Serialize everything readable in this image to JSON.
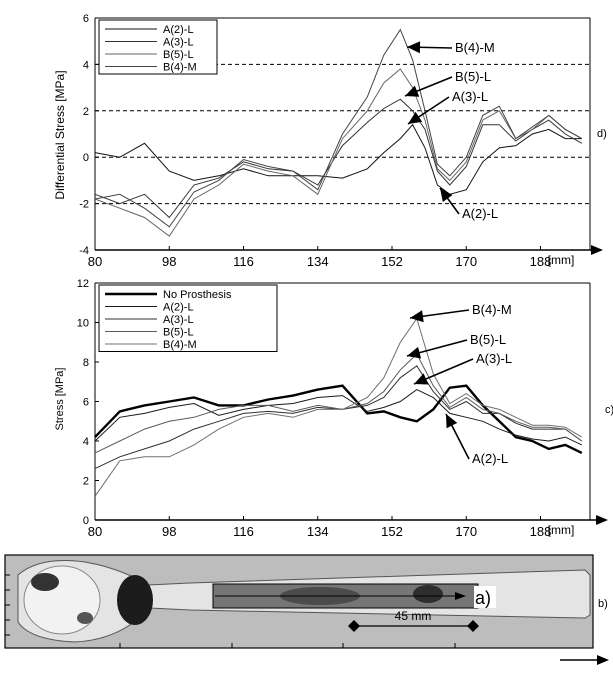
{
  "panel_labels": [
    "d)",
    "c)",
    "b)",
    "a)"
  ],
  "unit_label": "[mm]",
  "scale_bar_label": "45 mm",
  "chart_data": [
    {
      "type": "line",
      "panel": "d)",
      "ylabel": "Differential Stress [MPa]",
      "xlabel": "[mm]",
      "xlim": [
        80,
        200
      ],
      "ylim": [
        -4,
        6
      ],
      "xticks": [
        80,
        98,
        116,
        134,
        152,
        170,
        188
      ],
      "yticks": [
        -4,
        -2,
        0,
        2,
        4,
        6
      ],
      "dashed_gridlines_y": [
        4,
        2,
        0,
        -2
      ],
      "legend": [
        "A(2)-L",
        "A(3)-L",
        "B(5)-L",
        "B(4)-M"
      ],
      "legend_position": "top-left",
      "series": [
        {
          "name": "A(2)-L",
          "x": [
            80,
            86,
            92,
            98,
            104,
            110,
            116,
            122,
            128,
            134,
            140,
            146,
            150,
            154,
            157,
            160,
            163,
            166,
            170,
            174,
            178,
            182,
            186,
            190,
            194,
            198
          ],
          "values": [
            0.2,
            0.0,
            0.6,
            -0.6,
            -1.0,
            -0.8,
            -0.5,
            -0.8,
            -0.8,
            -0.8,
            -0.9,
            -0.5,
            0.2,
            0.8,
            1.4,
            0.4,
            -1.2,
            -1.6,
            -1.4,
            -0.2,
            0.4,
            0.5,
            1.0,
            1.2,
            0.8,
            0.8
          ]
        },
        {
          "name": "A(3)-L",
          "x": [
            80,
            86,
            92,
            98,
            104,
            110,
            116,
            122,
            128,
            134,
            140,
            146,
            150,
            154,
            157,
            160,
            163,
            166,
            170,
            174,
            178,
            182,
            186,
            190,
            194,
            198
          ],
          "values": [
            -1.6,
            -2.0,
            -1.6,
            -2.6,
            -1.2,
            -0.9,
            -0.2,
            -0.5,
            -0.6,
            -1.2,
            0.5,
            1.5,
            2.1,
            2.5,
            2.0,
            1.2,
            -0.6,
            -1.2,
            -0.4,
            1.4,
            1.4,
            0.7,
            1.2,
            1.6,
            1.0,
            0.6
          ]
        },
        {
          "name": "B(5)-L",
          "x": [
            80,
            86,
            92,
            98,
            104,
            110,
            116,
            122,
            128,
            134,
            140,
            146,
            150,
            154,
            157,
            160,
            163,
            166,
            170,
            174,
            178,
            182,
            186,
            190,
            194,
            198
          ],
          "values": [
            -1.8,
            -2.2,
            -2.6,
            -3.4,
            -1.8,
            -1.2,
            -0.3,
            -0.6,
            -0.8,
            -1.6,
            0.8,
            2.0,
            3.2,
            3.8,
            3.0,
            1.6,
            -0.5,
            -1.0,
            -0.2,
            1.6,
            2.0,
            0.8,
            1.2,
            1.8,
            1.2,
            0.8
          ]
        },
        {
          "name": "B(4)-M",
          "x": [
            80,
            86,
            92,
            98,
            104,
            110,
            116,
            122,
            128,
            134,
            140,
            146,
            150,
            154,
            157,
            160,
            163,
            166,
            170,
            174,
            178,
            182,
            186,
            190,
            194,
            198
          ],
          "values": [
            -1.8,
            -1.6,
            -2.2,
            -3.0,
            -1.5,
            -1.0,
            -0.1,
            -0.4,
            -0.6,
            -1.4,
            1.0,
            2.6,
            4.4,
            5.5,
            4.2,
            2.0,
            -0.3,
            -0.8,
            0.0,
            1.8,
            2.2,
            0.8,
            1.3,
            1.8,
            1.2,
            0.8
          ]
        }
      ],
      "annotations": [
        "B(4)-M",
        "B(5)-L",
        "A(3)-L",
        "A(2)-L"
      ]
    },
    {
      "type": "line",
      "panel": "c)",
      "ylabel": "Stress [MPa]",
      "xlabel": "[mm]",
      "xlim": [
        80,
        200
      ],
      "ylim": [
        0,
        12
      ],
      "xticks": [
        80,
        98,
        116,
        134,
        152,
        170,
        188
      ],
      "yticks": [
        0,
        2,
        4,
        6,
        8,
        10,
        12
      ],
      "legend": [
        "No Prosthesis",
        "A(2)-L",
        "A(3)-L",
        "B(5)-L",
        "B(4)-M"
      ],
      "legend_position": "top-left",
      "series": [
        {
          "name": "No Prosthesis",
          "x": [
            80,
            86,
            92,
            98,
            104,
            110,
            116,
            122,
            128,
            134,
            140,
            146,
            150,
            154,
            158,
            162,
            166,
            170,
            174,
            178,
            182,
            186,
            190,
            194,
            198
          ],
          "values": [
            4.2,
            5.5,
            5.8,
            6.0,
            6.2,
            5.8,
            5.8,
            6.1,
            6.3,
            6.6,
            6.8,
            5.4,
            5.5,
            5.2,
            5.0,
            5.6,
            6.7,
            6.8,
            5.8,
            5.0,
            4.2,
            4.0,
            3.6,
            3.8,
            3.4
          ]
        },
        {
          "name": "A(2)-L",
          "x": [
            80,
            86,
            92,
            98,
            104,
            110,
            116,
            122,
            128,
            134,
            140,
            146,
            150,
            154,
            158,
            162,
            166,
            170,
            174,
            178,
            182,
            186,
            190,
            194,
            198
          ],
          "values": [
            4.0,
            5.2,
            5.4,
            5.7,
            5.9,
            5.3,
            5.6,
            5.8,
            5.9,
            6.2,
            6.3,
            5.5,
            5.7,
            6.0,
            6.6,
            6.2,
            5.4,
            5.2,
            5.0,
            4.6,
            4.3,
            4.1,
            4.0,
            4.2,
            3.8
          ]
        },
        {
          "name": "A(3)-L",
          "x": [
            80,
            86,
            92,
            98,
            104,
            110,
            116,
            122,
            128,
            134,
            140,
            146,
            150,
            154,
            158,
            162,
            166,
            170,
            174,
            178,
            182,
            186,
            190,
            194,
            198
          ],
          "values": [
            2.6,
            3.2,
            3.6,
            4.0,
            4.6,
            5.0,
            5.4,
            5.5,
            5.4,
            5.7,
            5.6,
            5.8,
            6.2,
            7.2,
            7.8,
            6.5,
            5.6,
            6.0,
            5.4,
            5.4,
            4.9,
            4.6,
            4.6,
            4.6,
            4.0
          ]
        },
        {
          "name": "B(5)-L",
          "x": [
            80,
            86,
            92,
            98,
            104,
            110,
            116,
            122,
            128,
            134,
            140,
            146,
            150,
            154,
            158,
            162,
            166,
            170,
            174,
            178,
            182,
            186,
            190,
            194,
            198
          ],
          "values": [
            3.4,
            4.0,
            4.6,
            5.0,
            5.2,
            5.6,
            5.8,
            5.8,
            5.5,
            5.8,
            5.6,
            5.9,
            6.5,
            7.6,
            8.4,
            6.8,
            5.7,
            6.2,
            5.6,
            5.4,
            5.0,
            4.7,
            4.7,
            4.6,
            4.0
          ]
        },
        {
          "name": "B(4)-M",
          "x": [
            80,
            86,
            92,
            98,
            104,
            110,
            116,
            122,
            128,
            134,
            140,
            146,
            150,
            154,
            158,
            162,
            166,
            170,
            174,
            178,
            182,
            186,
            190,
            194,
            198
          ],
          "values": [
            1.2,
            3.0,
            3.2,
            3.2,
            3.8,
            4.6,
            5.2,
            5.4,
            5.2,
            5.6,
            5.6,
            6.2,
            7.2,
            9.0,
            10.2,
            7.4,
            5.9,
            6.4,
            5.8,
            5.6,
            5.2,
            4.8,
            4.8,
            4.7,
            4.2
          ]
        }
      ],
      "annotations": [
        "B(4)-M",
        "B(5)-L",
        "A(3)-L",
        "A(2)-L"
      ]
    }
  ]
}
